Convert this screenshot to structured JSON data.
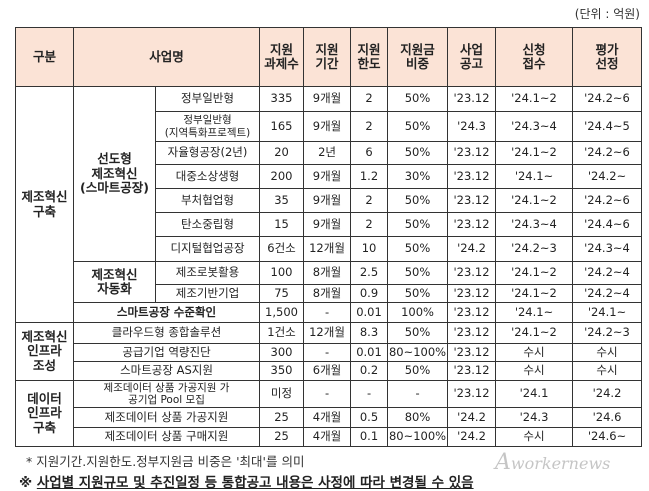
{
  "unit": "(단위 : 억원)",
  "headers": {
    "category": "구분",
    "program": "사업명",
    "count": [
      "지원",
      "과제수"
    ],
    "period": [
      "지원",
      "기간"
    ],
    "limit": [
      "지원",
      "한도"
    ],
    "ratio": [
      "지원금",
      "비중"
    ],
    "announce": [
      "사업",
      "공고"
    ],
    "apply": [
      "신청",
      "접수"
    ],
    "select": [
      "평가",
      "선정"
    ]
  },
  "groups": {
    "g1": [
      "제조혁신",
      "구축"
    ],
    "g1a": [
      "선도형",
      "제조혁신",
      "(스마트공장)"
    ],
    "g1b": [
      "제조혁신",
      "자동화"
    ],
    "g2": [
      "제조혁신",
      "인프라",
      "조성"
    ],
    "g3": [
      "데이터",
      "인프라",
      "구축"
    ]
  },
  "rows": [
    {
      "name": "정부일반형",
      "count": "335",
      "period": "9개월",
      "limit": "2",
      "ratio": "50%",
      "announce": "'23.12",
      "apply": "'24.1~2",
      "select": "'24.2~6"
    },
    {
      "name": "정부일반형",
      "name2": "(지역특화프로젝트)",
      "count": "165",
      "period": "9개월",
      "limit": "2",
      "ratio": "50%",
      "announce": "'24.3",
      "apply": "'24.3~4",
      "select": "'24.4~5"
    },
    {
      "name": "자율형공장(2년)",
      "count": "20",
      "period": "2년",
      "limit": "6",
      "ratio": "50%",
      "announce": "'23.12",
      "apply": "'24.1~2",
      "select": "'24.2~6"
    },
    {
      "name": "대중소상생형",
      "count": "200",
      "period": "9개월",
      "limit": "1.2",
      "ratio": "30%",
      "announce": "'23.12",
      "apply": "'24.1~",
      "select": "'24.2~"
    },
    {
      "name": "부처협업형",
      "count": "35",
      "period": "9개월",
      "limit": "2",
      "ratio": "50%",
      "announce": "'23.12",
      "apply": "'24.1~2",
      "select": "'24.2~6"
    },
    {
      "name": "탄소중립형",
      "count": "15",
      "period": "9개월",
      "limit": "2",
      "ratio": "50%",
      "announce": "'23.12",
      "apply": "'24.3~4",
      "select": "'24.4~6"
    },
    {
      "name": "디지털협업공장",
      "count": "6건소",
      "period": "12개월",
      "limit": "10",
      "ratio": "50%",
      "announce": "'24.2",
      "apply": "'24.2~3",
      "select": "'24.3~4"
    },
    {
      "name": "제조로봇활용",
      "count": "100",
      "period": "8개월",
      "limit": "2.5",
      "ratio": "50%",
      "announce": "'23.12",
      "apply": "'24.1~2",
      "select": "'24.2~4"
    },
    {
      "name": "제조기반기업",
      "count": "75",
      "period": "8개월",
      "limit": "0.9",
      "ratio": "50%",
      "announce": "'23.12",
      "apply": "'24.1~2",
      "select": "'24.2~4"
    },
    {
      "name": "스마트공장 수준확인",
      "count": "1,500",
      "period": "-",
      "limit": "0.01",
      "ratio": "100%",
      "announce": "'23.12",
      "apply": "'24.1~",
      "select": "'24.1~"
    },
    {
      "name": "클라우드형 종합솔루션",
      "count": "1건소",
      "period": "12개월",
      "limit": "8.3",
      "ratio": "50%",
      "announce": "'23.12",
      "apply": "'24.1~2",
      "select": "'24.2~3"
    },
    {
      "name": "공급기업 역량진단",
      "count": "300",
      "period": "-",
      "limit": "0.01",
      "ratio": "80~100%",
      "announce": "'23.12",
      "apply": "수시",
      "select": "수시"
    },
    {
      "name": "스마트공장 AS지원",
      "count": "350",
      "period": "6개월",
      "limit": "0.2",
      "ratio": "50%",
      "announce": "'23.12",
      "apply": "수시",
      "select": "수시"
    },
    {
      "name": "제조데이터 상품 가공지원 가",
      "name2": "공기업 Pool 모집",
      "count": "미정",
      "period": "-",
      "limit": "-",
      "ratio": "-",
      "announce": "'23.12",
      "apply": "'24.1",
      "select": "'24.2"
    },
    {
      "name": "제조데이터 상품 가공지원",
      "count": "25",
      "period": "4개월",
      "limit": "0.5",
      "ratio": "80%",
      "announce": "'24.2",
      "apply": "'24.3",
      "select": "'24.6"
    },
    {
      "name": "제조데이터 상품 구매지원",
      "count": "25",
      "period": "4개월",
      "limit": "0.1",
      "ratio": "80~100%",
      "announce": "'24.2",
      "apply": "수시",
      "select": "'24.6~"
    }
  ],
  "footnote": "* 지원기간.지원한도.정부지원금 비중은 '최대'를 의미",
  "notice_mark": "※",
  "notice": "사업별 지원규모 및 추진일정 등 통합공고 내용은 사정에 따라 변경될 수 있음",
  "watermark": "Aworkernews",
  "colors": {
    "header_bg": "#fbe3d6",
    "border": "#333333"
  }
}
